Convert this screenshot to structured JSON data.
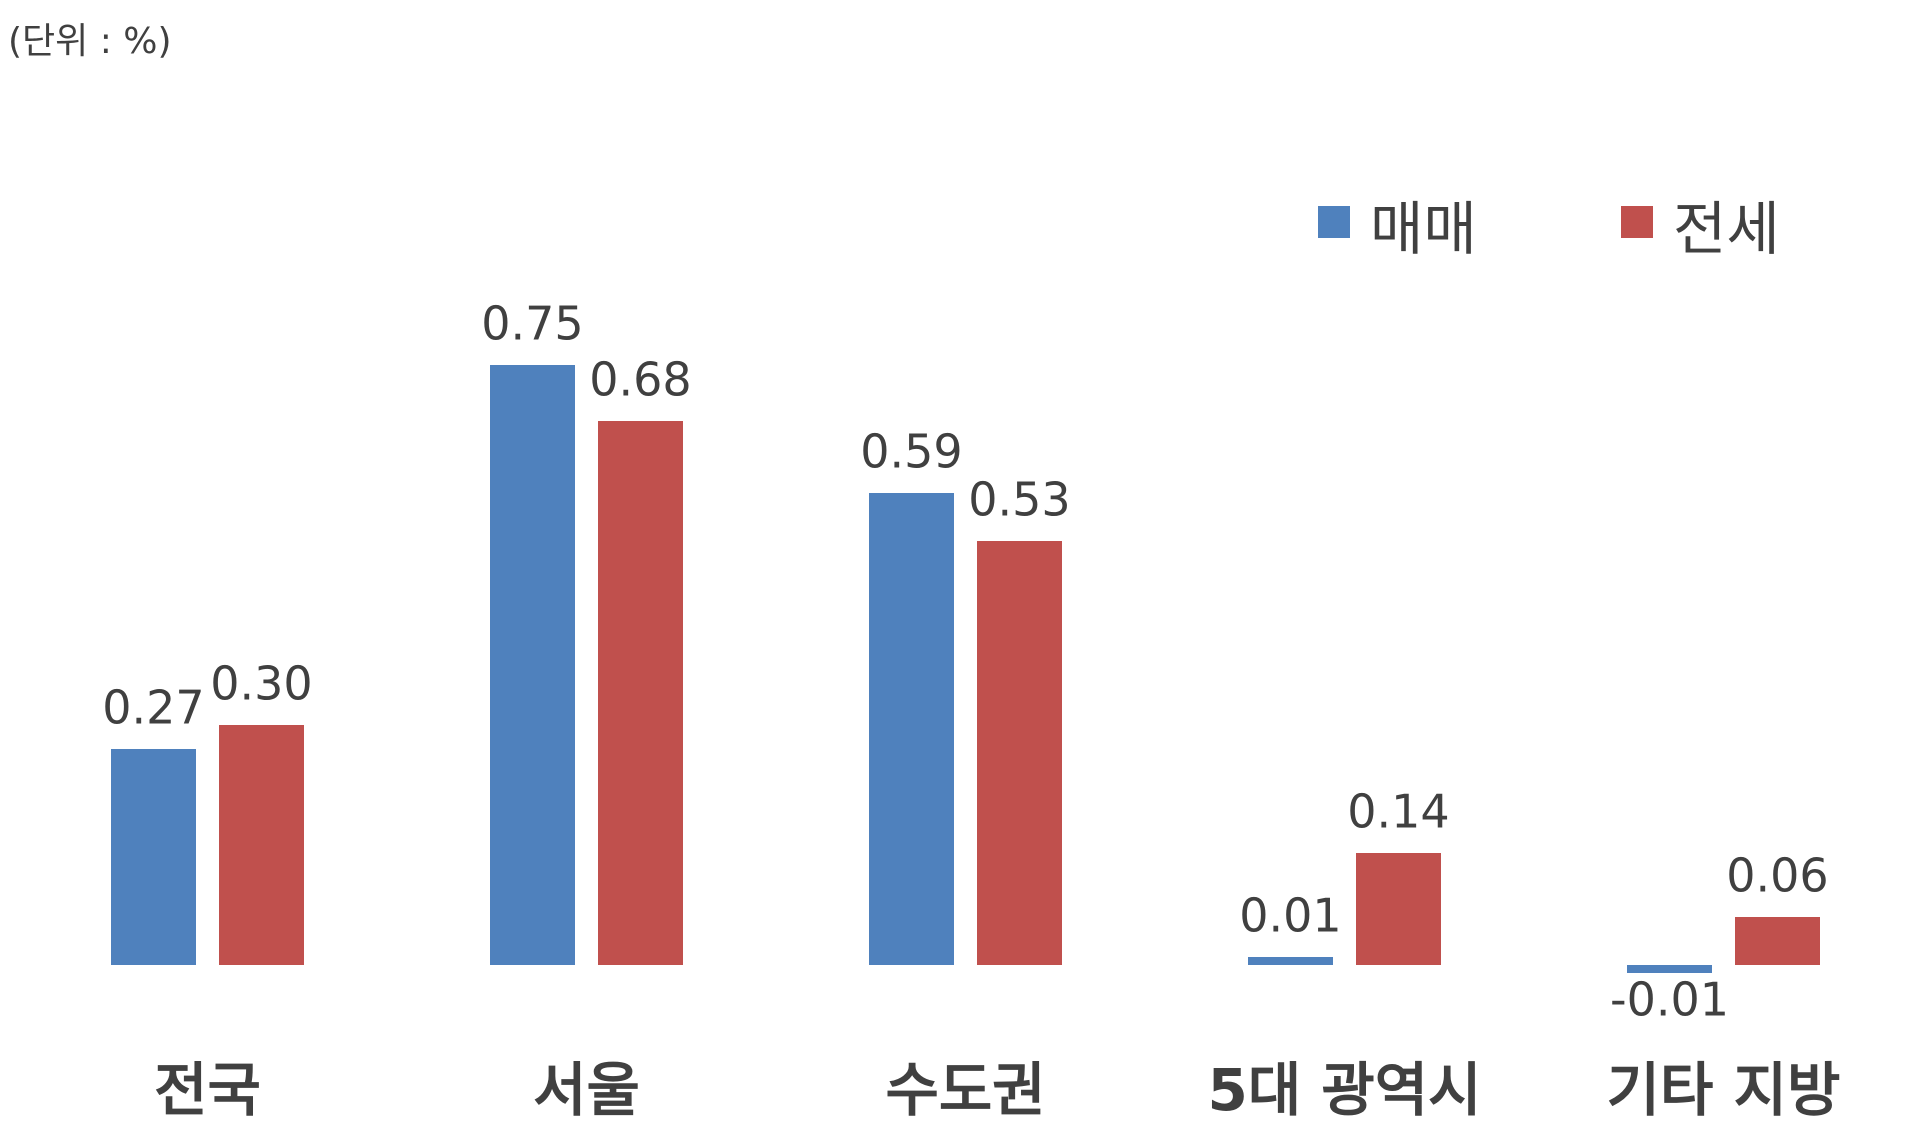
{
  "chart_data": {
    "type": "bar",
    "unit_note": "(단위 : %)",
    "categories": [
      "전국",
      "서울",
      "수도권",
      "5대 광역시",
      "기타 지방"
    ],
    "series": [
      {
        "name": "매매",
        "color": "#4f81bd",
        "values": [
          0.27,
          0.75,
          0.59,
          0.01,
          -0.01
        ],
        "value_labels": [
          "0.27",
          "0.75",
          "0.59",
          "0.01",
          "-0.01"
        ]
      },
      {
        "name": "전세",
        "color": "#c0504d",
        "values": [
          0.3,
          0.68,
          0.53,
          0.14,
          0.06
        ],
        "value_labels": [
          "0.30",
          "0.68",
          "0.53",
          "0.14",
          "0.06"
        ]
      }
    ],
    "legend": "top-right"
  }
}
